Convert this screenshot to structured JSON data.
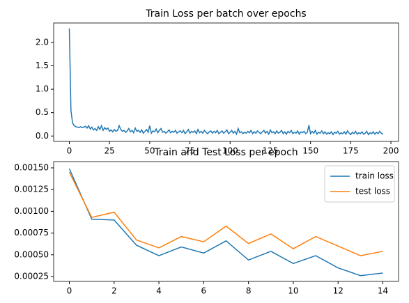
{
  "chart_data": [
    {
      "type": "line",
      "title": "Train Loss per batch over epochs",
      "x": [
        0,
        1,
        2,
        3,
        4,
        5,
        6,
        7,
        8,
        9,
        10,
        11,
        12,
        13,
        14,
        15,
        16,
        17,
        18,
        19,
        20,
        21,
        22,
        23,
        24,
        25,
        26,
        27,
        28,
        29,
        30,
        31,
        32,
        33,
        34,
        35,
        36,
        37,
        38,
        39,
        40,
        41,
        42,
        43,
        44,
        45,
        46,
        47,
        48,
        49,
        50,
        51,
        52,
        53,
        54,
        55,
        56,
        57,
        58,
        59,
        60,
        61,
        62,
        63,
        64,
        65,
        66,
        67,
        68,
        69,
        70,
        71,
        72,
        73,
        74,
        75,
        76,
        77,
        78,
        79,
        80,
        81,
        82,
        83,
        84,
        85,
        86,
        87,
        88,
        89,
        90,
        91,
        92,
        93,
        94,
        95,
        96,
        97,
        98,
        99,
        100,
        101,
        102,
        103,
        104,
        105,
        106,
        107,
        108,
        109,
        110,
        111,
        112,
        113,
        114,
        115,
        116,
        117,
        118,
        119,
        120,
        121,
        122,
        123,
        124,
        125,
        126,
        127,
        128,
        129,
        130,
        131,
        132,
        133,
        134,
        135,
        136,
        137,
        138,
        139,
        140,
        141,
        142,
        143,
        144,
        145,
        146,
        147,
        148,
        149,
        150,
        151,
        152,
        153,
        154,
        155,
        156,
        157,
        158,
        159,
        160,
        161,
        162,
        163,
        164,
        165,
        166,
        167,
        168,
        169,
        170,
        171,
        172,
        173,
        174,
        175,
        176,
        177,
        178,
        179,
        180,
        181,
        182,
        183,
        184,
        185,
        186,
        187,
        188,
        189,
        190,
        191,
        192,
        193,
        194,
        195
      ],
      "series": [
        {
          "name": null,
          "color": "#1f77b4",
          "values": [
            2.3,
            0.55,
            0.28,
            0.22,
            0.2,
            0.19,
            0.18,
            0.2,
            0.18,
            0.19,
            0.21,
            0.17,
            0.22,
            0.15,
            0.19,
            0.13,
            0.16,
            0.12,
            0.2,
            0.14,
            0.22,
            0.12,
            0.18,
            0.14,
            0.17,
            0.1,
            0.13,
            0.09,
            0.14,
            0.1,
            0.12,
            0.22,
            0.14,
            0.1,
            0.12,
            0.08,
            0.11,
            0.16,
            0.09,
            0.12,
            0.07,
            0.17,
            0.1,
            0.12,
            0.08,
            0.13,
            0.06,
            0.1,
            0.14,
            0.08,
            0.22,
            0.06,
            0.11,
            0.09,
            0.15,
            0.07,
            0.12,
            0.16,
            0.08,
            0.1,
            0.06,
            0.09,
            0.13,
            0.07,
            0.1,
            0.08,
            0.12,
            0.06,
            0.09,
            0.11,
            0.07,
            0.12,
            0.05,
            0.09,
            0.14,
            0.06,
            0.1,
            0.08,
            0.11,
            0.05,
            0.14,
            0.07,
            0.1,
            0.06,
            0.12,
            0.08,
            0.05,
            0.09,
            0.11,
            0.06,
            0.1,
            0.07,
            0.12,
            0.05,
            0.08,
            0.11,
            0.06,
            0.09,
            0.13,
            0.05,
            0.08,
            0.12,
            0.06,
            0.1,
            0.04,
            0.16,
            0.07,
            0.09,
            0.05,
            0.08,
            0.06,
            0.1,
            0.07,
            0.12,
            0.05,
            0.09,
            0.06,
            0.11,
            0.08,
            0.05,
            0.09,
            0.12,
            0.06,
            0.1,
            0.04,
            0.13,
            0.07,
            0.09,
            0.05,
            0.11,
            0.06,
            0.08,
            0.12,
            0.05,
            0.09,
            0.04,
            0.1,
            0.07,
            0.12,
            0.05,
            0.08,
            0.06,
            0.11,
            0.04,
            0.09,
            0.07,
            0.1,
            0.05,
            0.08,
            0.23,
            0.05,
            0.1,
            0.06,
            0.12,
            0.04,
            0.08,
            0.06,
            0.11,
            0.05,
            0.09,
            0.04,
            0.07,
            0.05,
            0.09,
            0.03,
            0.08,
            0.06,
            0.1,
            0.04,
            0.07,
            0.05,
            0.09,
            0.04,
            0.11,
            0.06,
            0.03,
            0.08,
            0.05,
            0.1,
            0.04,
            0.07,
            0.05,
            0.09,
            0.04,
            0.06,
            0.1,
            0.03,
            0.07,
            0.05,
            0.09,
            0.04,
            0.08,
            0.05,
            0.1,
            0.06,
            0.04
          ]
        }
      ],
      "xlim": [
        -9.75,
        204.75
      ],
      "xticks": [
        0,
        25,
        50,
        75,
        100,
        125,
        150,
        175,
        200
      ],
      "ylim": [
        -0.115,
        2.415
      ],
      "yticks": [
        {
          "value": 0,
          "label": "0.0"
        },
        0.5,
        {
          "value": 1,
          "label": "1.0"
        },
        1.5,
        {
          "value": 2,
          "label": "2.0"
        }
      ]
    },
    {
      "type": "line",
      "title": "Train and Test Loss per epoch",
      "x": [
        0,
        1,
        2,
        3,
        4,
        5,
        6,
        7,
        8,
        9,
        10,
        11,
        12,
        13,
        14
      ],
      "series": [
        {
          "name": "train loss",
          "color": "#1f77b4",
          "values": [
            0.00149,
            0.00091,
            0.0009,
            0.00061,
            0.00049,
            0.00059,
            0.00052,
            0.00066,
            0.00044,
            0.00054,
            0.0004,
            0.00049,
            0.00035,
            0.00026,
            0.00029
          ]
        },
        {
          "name": "test loss",
          "color": "#ff7f0e",
          "values": [
            0.00145,
            0.00093,
            0.00099,
            0.00067,
            0.00058,
            0.00071,
            0.00065,
            0.00083,
            0.00063,
            0.00074,
            0.00057,
            0.00071,
            0.0006,
            0.00049,
            0.00054
          ]
        }
      ],
      "legend": "upper right",
      "xlim": [
        -0.7,
        14.7
      ],
      "xticks": [
        0,
        2,
        4,
        6,
        8,
        10,
        12,
        14
      ],
      "ylim": [
        0.000194,
        0.001572
      ],
      "yticks": [
        0.00025,
        {
          "value": 0.0005,
          "label": "0.00050"
        },
        0.00075,
        {
          "value": 0.001,
          "label": "0.00100"
        },
        0.00125,
        {
          "value": 0.0015,
          "label": "0.00150"
        }
      ]
    }
  ]
}
